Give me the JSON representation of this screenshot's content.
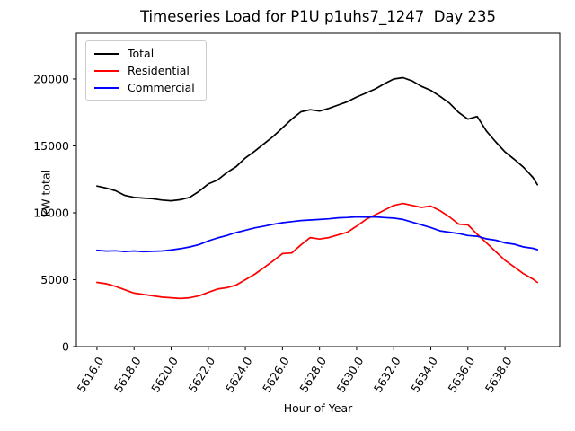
{
  "chart_data": {
    "type": "line",
    "title": "Timeseries Load for P1U p1uhs7_1247  Day 235",
    "xlabel": "Hour of Year",
    "ylabel": "kW total",
    "legend_position": "upper left",
    "grid": false,
    "xlim": [
      5614.89,
      5640.95
    ],
    "ylim": [
      0,
      23420
    ],
    "yticks": [
      "0",
      "5000",
      "10000",
      "15000",
      "20000"
    ],
    "xticks": [
      "5616.0",
      "5618.0",
      "5620.0",
      "5622.0",
      "5624.0",
      "5626.0",
      "5628.0",
      "5630.0",
      "5632.0",
      "5634.0",
      "5636.0",
      "5638.0"
    ],
    "x": [
      5616.0,
      5616.5,
      5617.0,
      5617.5,
      5618.0,
      5618.5,
      5619.0,
      5619.5,
      5620.0,
      5620.5,
      5621.0,
      5621.5,
      5622.0,
      5622.5,
      5623.0,
      5623.5,
      5624.0,
      5624.5,
      5625.0,
      5625.5,
      5626.0,
      5626.5,
      5627.0,
      5627.5,
      5628.0,
      5628.5,
      5629.0,
      5629.5,
      5630.0,
      5630.5,
      5631.0,
      5631.5,
      5632.0,
      5632.5,
      5633.0,
      5633.5,
      5634.0,
      5634.5,
      5635.0,
      5635.5,
      5636.0,
      5636.5,
      5637.0,
      5637.5,
      5638.0,
      5638.5,
      5639.0,
      5639.5,
      5639.75
    ],
    "series": [
      {
        "name": "Total",
        "color": "#000000",
        "values": [
          12000,
          11850,
          11650,
          11300,
          11150,
          11100,
          11050,
          10950,
          10900,
          10980,
          11150,
          11600,
          12150,
          12450,
          13000,
          13450,
          14100,
          14600,
          15150,
          15700,
          16350,
          17000,
          17550,
          17700,
          17600,
          17800,
          18050,
          18300,
          18650,
          18950,
          19250,
          19650,
          20000,
          20100,
          19850,
          19450,
          19150,
          18700,
          18200,
          17500,
          17000,
          17200,
          16100,
          15300,
          14550,
          14000,
          13400,
          12650,
          12100
        ]
      },
      {
        "name": "Residential",
        "color": "#ff0000",
        "values": [
          4800,
          4700,
          4500,
          4250,
          4000,
          3900,
          3800,
          3700,
          3650,
          3600,
          3650,
          3800,
          4050,
          4300,
          4400,
          4600,
          5000,
          5400,
          5900,
          6400,
          6950,
          7000,
          7600,
          8150,
          8040,
          8150,
          8350,
          8550,
          9000,
          9500,
          9850,
          10200,
          10550,
          10700,
          10550,
          10400,
          10500,
          10150,
          9700,
          9150,
          9100,
          8400,
          7750,
          7100,
          6450,
          5950,
          5450,
          5050,
          4800
        ]
      },
      {
        "name": "Commercial",
        "color": "#0000ff",
        "values": [
          7200,
          7140,
          7160,
          7100,
          7150,
          7090,
          7120,
          7150,
          7220,
          7320,
          7450,
          7620,
          7900,
          8120,
          8300,
          8520,
          8700,
          8870,
          9000,
          9140,
          9260,
          9340,
          9420,
          9460,
          9500,
          9550,
          9620,
          9650,
          9700,
          9680,
          9700,
          9640,
          9600,
          9500,
          9300,
          9100,
          8900,
          8650,
          8550,
          8450,
          8300,
          8250,
          8050,
          7950,
          7750,
          7650,
          7450,
          7350,
          7250
        ]
      }
    ]
  }
}
